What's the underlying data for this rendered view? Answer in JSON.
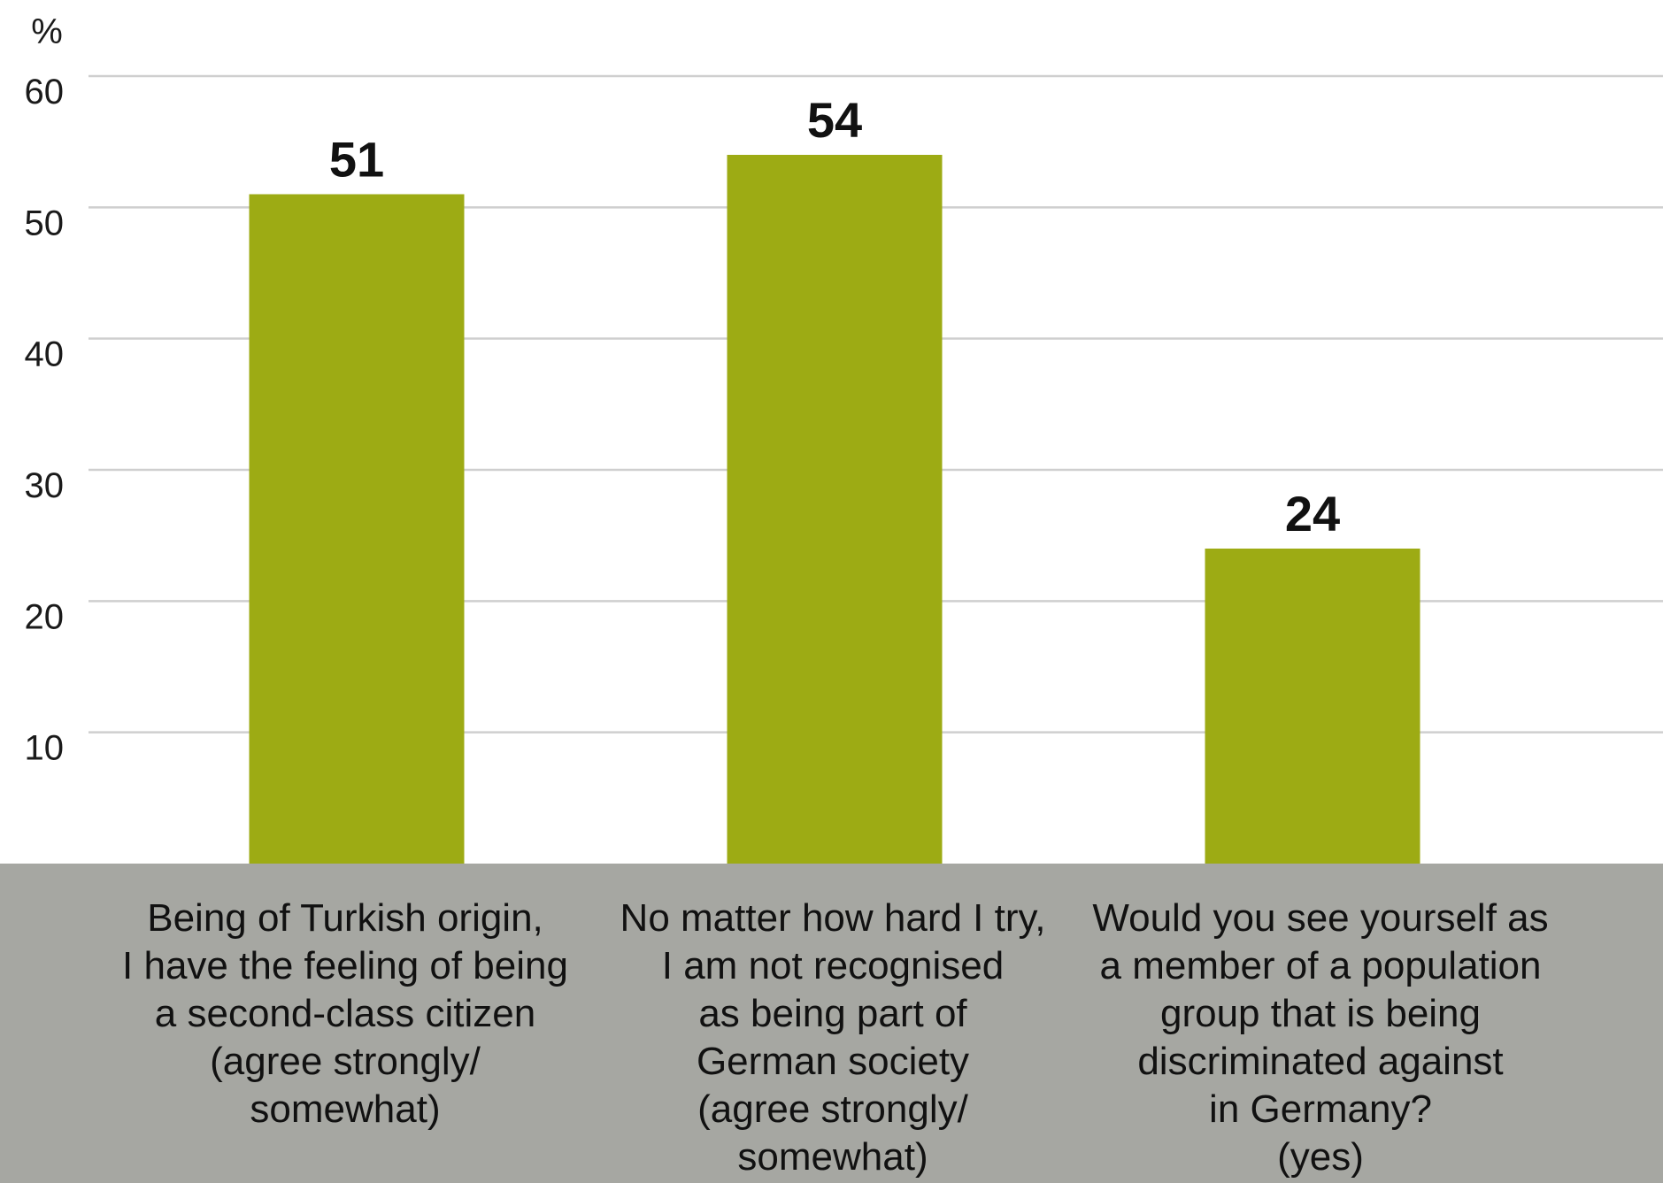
{
  "chart_data": {
    "type": "bar",
    "categories": [
      "Being of Turkish origin,\nI have the feeling of being\na second-class citizen\n(agree strongly/\nsomewhat)",
      "No matter how hard I try,\nI am not recognised\nas being part of\nGerman society\n(agree strongly/\nsomewhat)",
      "Would you see yourself as\na member of a population\ngroup that is being\ndiscriminated against\nin Germany?\n(yes)"
    ],
    "values": [
      51,
      54,
      24
    ],
    "ylabel": "%",
    "ylim": [
      0,
      60
    ],
    "yticks": [
      10,
      20,
      30,
      40,
      50,
      60
    ],
    "grid": true
  },
  "colors": {
    "bar": "#9dab14",
    "gridline": "#cfcfcf",
    "category_panel": "#a6a7a2",
    "text": "#111111"
  }
}
